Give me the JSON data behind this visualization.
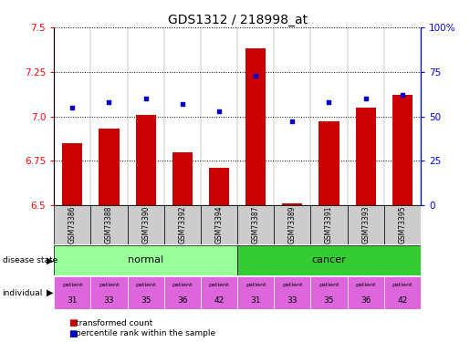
{
  "title": "GDS1312 / 218998_at",
  "samples": [
    "GSM73386",
    "GSM73388",
    "GSM73390",
    "GSM73392",
    "GSM73394",
    "GSM73387",
    "GSM73389",
    "GSM73391",
    "GSM73393",
    "GSM73395"
  ],
  "transformed_count": [
    6.85,
    6.93,
    7.01,
    6.8,
    6.71,
    7.38,
    6.51,
    6.97,
    7.05,
    7.12
  ],
  "percentile_rank": [
    55,
    58,
    60,
    57,
    53,
    73,
    47,
    58,
    60,
    62
  ],
  "disease_state": [
    "normal",
    "normal",
    "normal",
    "normal",
    "normal",
    "cancer",
    "cancer",
    "cancer",
    "cancer",
    "cancer"
  ],
  "individual": [
    "31",
    "33",
    "35",
    "36",
    "42",
    "31",
    "33",
    "35",
    "36",
    "42"
  ],
  "ylim_left": [
    6.5,
    7.5
  ],
  "ylim_right": [
    0,
    100
  ],
  "yticks_left": [
    6.5,
    6.75,
    7.0,
    7.25,
    7.5
  ],
  "yticks_right": [
    0,
    25,
    50,
    75,
    100
  ],
  "bar_color": "#cc0000",
  "dot_color": "#0000cc",
  "normal_color": "#99ff99",
  "cancer_color": "#33cc33",
  "individual_color": "#dd66dd",
  "xticklabel_bg": "#cccccc",
  "title_fontsize": 10,
  "axis_fontsize": 7.5,
  "fig_width": 5.15,
  "fig_height": 3.75
}
